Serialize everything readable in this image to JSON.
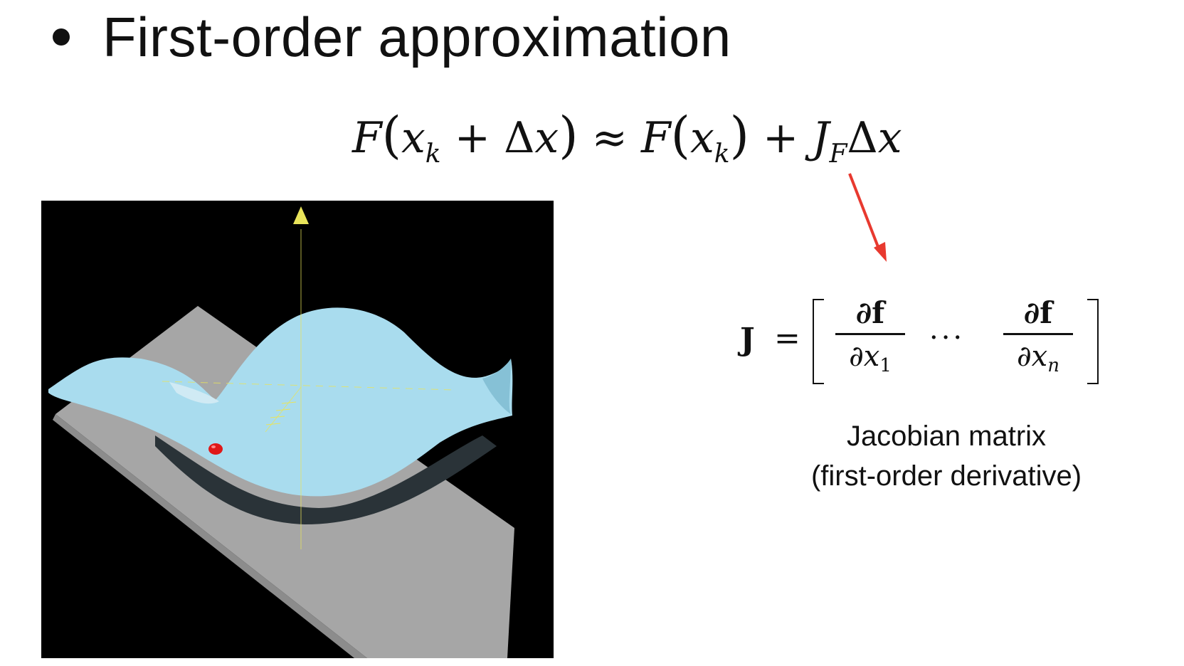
{
  "slide": {
    "bullet_heading": "First-order approximation",
    "equation": {
      "lhs_F": "F",
      "lhs_x": "x",
      "lhs_k": "k",
      "plus": "+",
      "delta": "Δ",
      "dx": "x",
      "approx": "≈",
      "rhs_F": "F",
      "rhs_x": "x",
      "rhs_k": "k",
      "rhs_plus": "+",
      "J": "J",
      "J_sub": "F",
      "rhs_delta": "Δ",
      "rhs_dx": "x"
    },
    "jacobian": {
      "symbol": "J",
      "equals": "=",
      "num1": "∂f",
      "den1_var": "∂x",
      "den1_sub": "1",
      "ellipsis": "···",
      "num2": "∂f",
      "den2_var": "∂x",
      "den2_sub": "n"
    },
    "caption_line1": "Jacobian matrix",
    "caption_line2": "(first-order derivative)",
    "colors": {
      "arrow": "#e8392f",
      "surface": "#a9dcee",
      "plane": "#a8a8a8",
      "background_figure": "#000000",
      "axis": "#e9e45a",
      "point": "#e01818"
    },
    "figure_icon": "3d-surface-tangent-plane-image"
  }
}
